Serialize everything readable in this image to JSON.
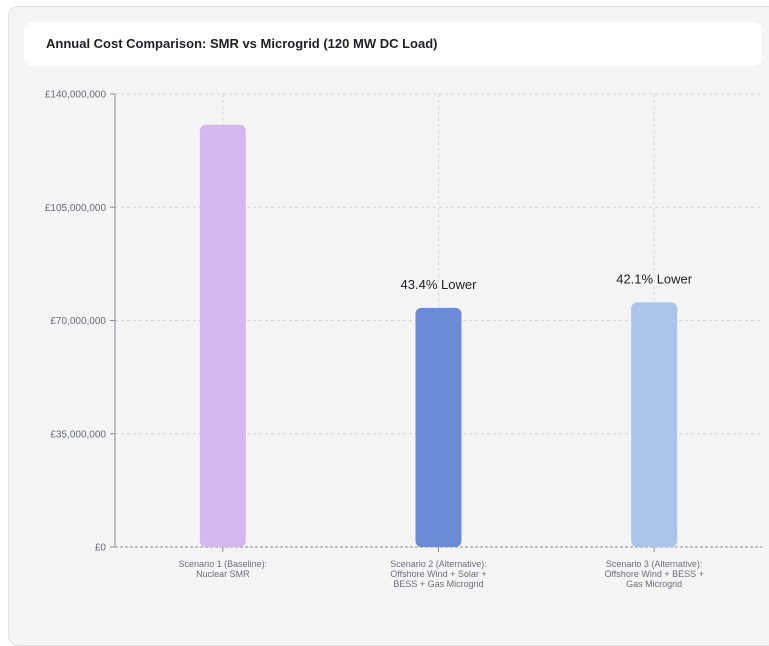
{
  "chart_data": {
    "type": "bar",
    "title": "Annual Cost Comparison: SMR vs Microgrid (120 MW DC Load)",
    "xlabel": "",
    "ylabel": "",
    "ylim": [
      0,
      140000000
    ],
    "y_ticks": [
      {
        "value": 0,
        "label": "£0"
      },
      {
        "value": 35000000,
        "label": "£35,000,000"
      },
      {
        "value": 70000000,
        "label": "£70,000,000"
      },
      {
        "value": 105000000,
        "label": "£105,000,000"
      },
      {
        "value": 140000000,
        "label": "£140,000,000"
      }
    ],
    "categories": [
      [
        "Scenario 1 (Baseline):",
        "Nuclear SMR"
      ],
      [
        "Scenario 2 (Alternative):",
        "Offshore Wind + Solar +",
        "BESS + Gas Microgrid"
      ],
      [
        "Scenario 3 (Alternative):",
        "Offshore Wind + BESS +",
        "Gas Microgrid"
      ]
    ],
    "values": [
      130500000,
      73900000,
      75600000
    ],
    "bar_colors": [
      "#d4b8f0",
      "#6b8bd6",
      "#aac4ea"
    ],
    "data_labels": [
      "",
      "43.4% Lower",
      "42.1% Lower"
    ],
    "grid": true,
    "legend": "none"
  }
}
